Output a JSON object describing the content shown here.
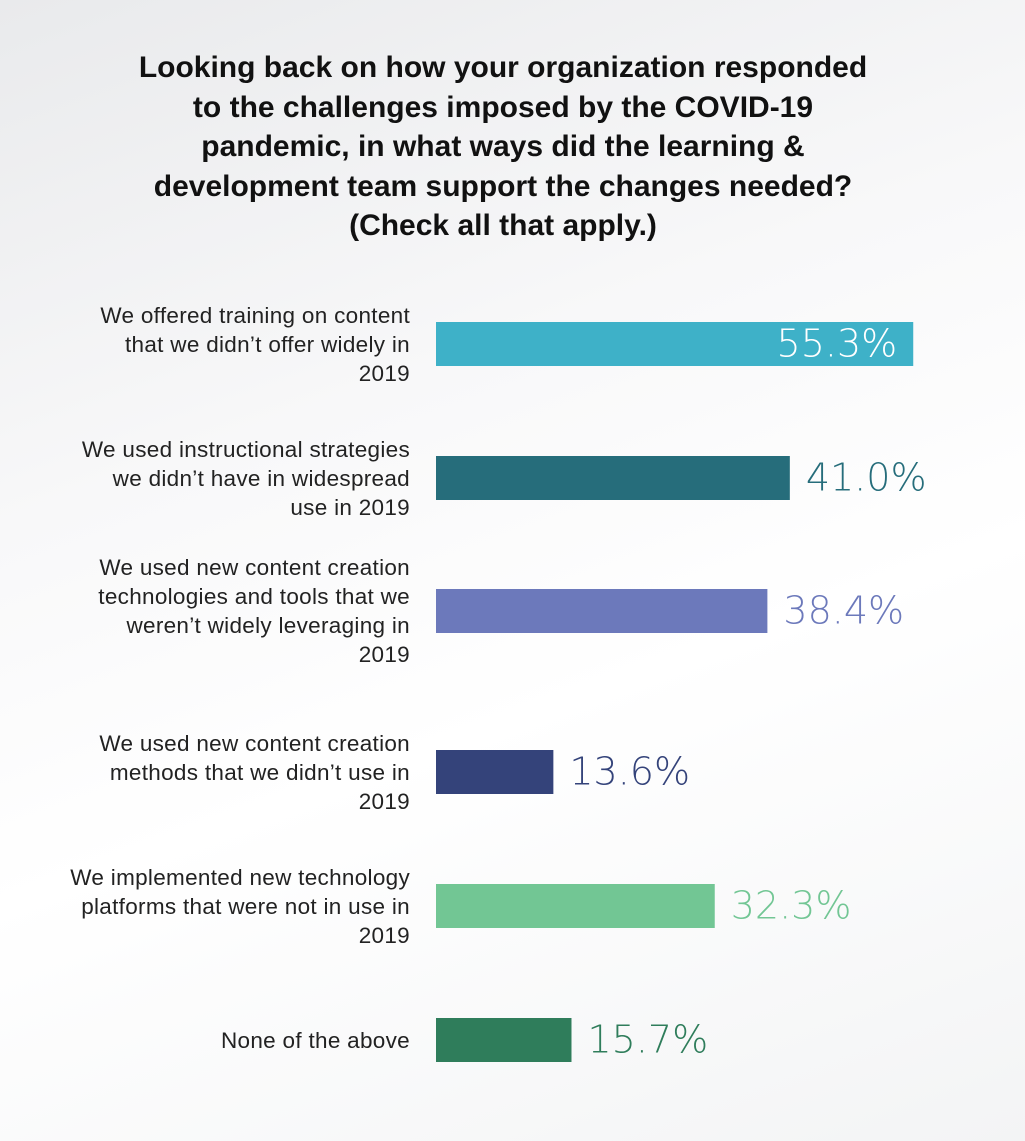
{
  "chart_data": {
    "type": "bar",
    "orientation": "horizontal",
    "title": "Looking back on how your organization responded to the challenges imposed by the COVID-19 pandemic, in what ways did the learning & development team support the changes needed? (Check all that apply.)",
    "categories": [
      "We offered training on content that we didn’t offer widely in 2019",
      "We used instructional strategies we didn’t have in widespread use in 2019",
      "We used new content creation technologies and tools that we weren’t widely leveraging in 2019",
      "We used new content creation methods that we didn’t use in 2019",
      "We implemented new technology platforms that were not in use in 2019",
      "None of the above"
    ],
    "values": [
      55.3,
      41.0,
      38.4,
      13.6,
      32.3,
      15.7
    ],
    "value_labels": [
      "55.3%",
      "41.0%",
      "38.4%",
      "13.6%",
      "32.3%",
      "15.7%"
    ],
    "colors": [
      "#3eb1c8",
      "#266d7b",
      "#6c79bb",
      "#34437a",
      "#72c694",
      "#2f7d5b"
    ]
  }
}
